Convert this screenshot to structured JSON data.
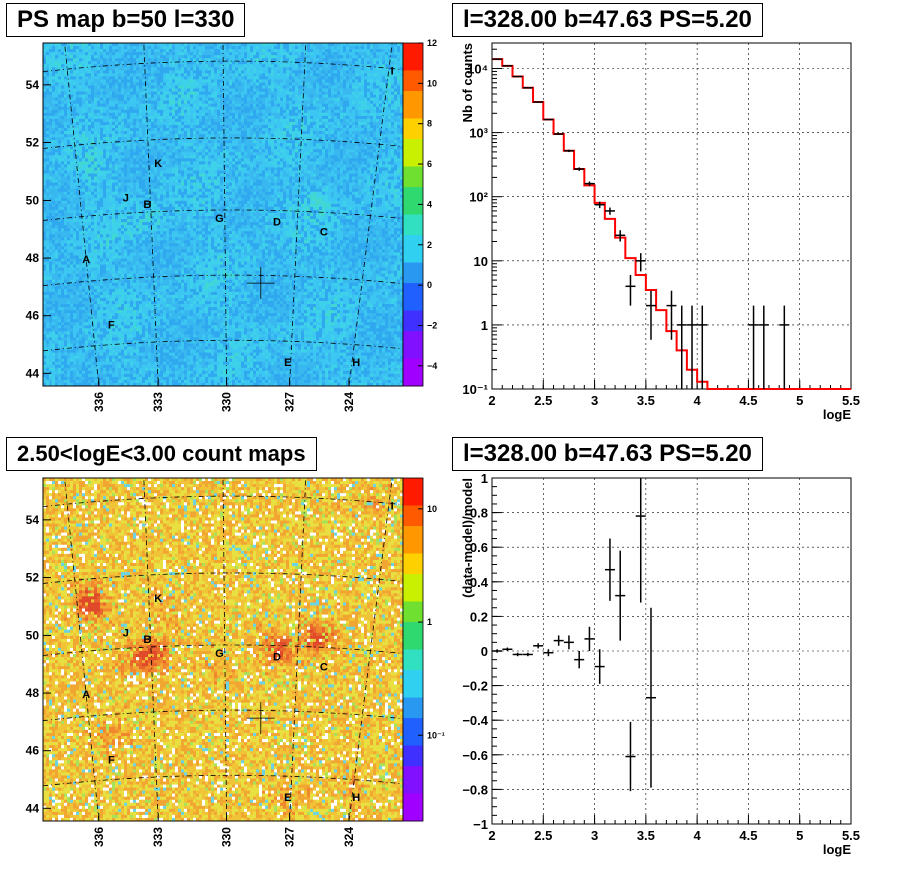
{
  "panels": {
    "tl_title": "PS map b=50 l=330",
    "tr_title": "l=328.00 b=47.63 PS=5.20",
    "bl_title": "2.50<logE<3.00 count maps",
    "br_title": "l=328.00 b=47.63 PS=5.20"
  },
  "colors": {
    "model": "#ff0000",
    "data": "#000000"
  },
  "chart_data": [
    {
      "type": "heatmap",
      "title": "PS map b=50 l=330",
      "x_ticks": [
        "336",
        "333",
        "330",
        "327",
        "324"
      ],
      "y_ticks": [
        "44",
        "46",
        "48",
        "50",
        "52",
        "54"
      ],
      "colorbar_ticks": [
        "12",
        "10",
        "8",
        "6",
        "4",
        "2",
        "0",
        "−2",
        "−4"
      ],
      "colorbar_range": [
        -5,
        12
      ],
      "source_labels": [
        "A",
        "B",
        "C",
        "D",
        "E",
        "F",
        "G",
        "H",
        "I",
        "J",
        "K"
      ],
      "marker": "source position",
      "grid": true
    },
    {
      "type": "line",
      "title": "l=328.00 b=47.63 PS=5.20",
      "xlabel": "logE",
      "ylabel": "Nb of counts",
      "ylog": true,
      "xlim": [
        2,
        5.5
      ],
      "ylim": [
        0.1,
        25000
      ],
      "x_ticks": [
        "2",
        "2.5",
        "3",
        "3.5",
        "4",
        "4.5",
        "5",
        "5.5"
      ],
      "y_ticks": [
        "10⁻¹",
        "1",
        "10",
        "10²",
        "10³",
        "10⁴"
      ],
      "grid": true,
      "series": [
        {
          "kind": "model-histogram",
          "bin_edges": [
            2.0,
            2.1,
            2.2,
            2.3,
            2.4,
            2.5,
            2.6,
            2.7,
            2.8,
            2.9,
            3.0,
            3.1,
            3.2,
            3.3,
            3.4,
            3.5,
            3.6,
            3.7,
            3.8,
            3.9,
            4.0,
            4.1,
            5.5
          ],
          "values": [
            14000,
            11000,
            7500,
            5000,
            3000,
            1600,
            950,
            520,
            270,
            150,
            80,
            45,
            23,
            11,
            6,
            3.5,
            1.7,
            0.8,
            0.4,
            0.2,
            0.13,
            0.1
          ]
        },
        {
          "kind": "data-points",
          "x": [
            2.05,
            2.15,
            2.25,
            2.35,
            2.45,
            2.55,
            2.65,
            2.75,
            2.85,
            2.95,
            3.05,
            3.15,
            3.25,
            3.35,
            3.45,
            3.55,
            3.75,
            3.85,
            3.95,
            4.05,
            4.55,
            4.65,
            4.85
          ],
          "y": [
            14000,
            11000,
            7500,
            5000,
            3000,
            1600,
            950,
            520,
            270,
            160,
            75,
            60,
            25,
            4,
            10,
            2,
            2,
            1,
            1,
            1,
            1,
            1,
            1
          ]
        }
      ]
    },
    {
      "type": "heatmap",
      "title": "2.50<logE<3.00 count maps",
      "x_ticks": [
        "336",
        "333",
        "330",
        "327",
        "324"
      ],
      "y_ticks": [
        "44",
        "46",
        "48",
        "50",
        "52",
        "54"
      ],
      "colorbar_ticks": [
        "10",
        "1",
        "10⁻¹"
      ],
      "colorbar_log": true,
      "source_labels": [
        "A",
        "B",
        "C",
        "D",
        "E",
        "F",
        "G",
        "H",
        "I",
        "J",
        "K"
      ],
      "marker": "source position",
      "grid": true
    },
    {
      "type": "scatter",
      "title": "l=328.00 b=47.63 PS=5.20",
      "xlabel": "logE",
      "ylabel": "(data-model)/model",
      "xlim": [
        2,
        5.5
      ],
      "ylim": [
        -1,
        1
      ],
      "x_ticks": [
        "2",
        "2.5",
        "3",
        "3.5",
        "4",
        "4.5",
        "5",
        "5.5"
      ],
      "y_ticks": [
        "−1",
        "−0.8",
        "−0.6",
        "−0.4",
        "−0.2",
        "0",
        "0.2",
        "0.4",
        "0.6",
        "0.8",
        "1"
      ],
      "grid": true,
      "x": [
        2.05,
        2.15,
        2.25,
        2.35,
        2.45,
        2.55,
        2.65,
        2.75,
        2.85,
        2.95,
        3.05,
        3.15,
        3.25,
        3.35,
        3.45,
        3.55
      ],
      "y": [
        0.0,
        0.01,
        -0.02,
        -0.02,
        0.03,
        -0.01,
        0.06,
        0.05,
        -0.05,
        0.07,
        -0.09,
        0.47,
        0.32,
        -0.61,
        0.78,
        -0.27
      ],
      "err": [
        0.01,
        0.01,
        0.01,
        0.01,
        0.015,
        0.02,
        0.03,
        0.04,
        0.05,
        0.07,
        0.1,
        0.18,
        0.26,
        0.2,
        0.5,
        0.52
      ]
    }
  ]
}
